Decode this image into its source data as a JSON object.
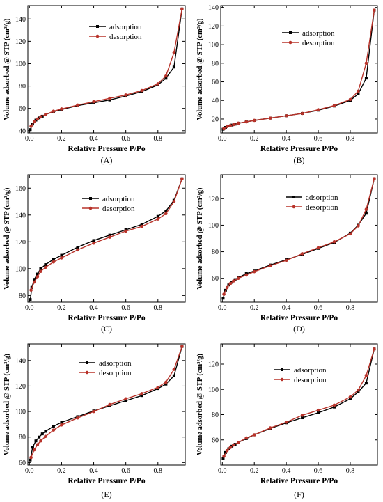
{
  "colors": {
    "adsorption": "#000000",
    "desorption": "#b8332a",
    "axis": "#000000"
  },
  "chart_data": [
    {
      "type": "line",
      "panel_label": "(A)",
      "xlabel": "Relative Pressure P/Po",
      "ylabel": "Volume adsorbed @ STP (cm³/g)",
      "xlim": [
        -0.01,
        0.97
      ],
      "ylim": [
        38,
        152
      ],
      "xticks": [
        0.0,
        0.2,
        0.4,
        0.6,
        0.8
      ],
      "xtick_labels": [
        "0.0",
        "0.2",
        "0.4",
        "0.6",
        "0.8"
      ],
      "yticks": [
        40,
        60,
        80,
        100,
        120,
        140
      ],
      "ytick_labels": [
        "40",
        "60",
        "80",
        "100",
        "120",
        "140"
      ],
      "legend": {
        "position": "top-left-center",
        "entries": [
          "adsorption",
          "desorption"
        ]
      },
      "series": [
        {
          "name": "adsorption",
          "x": [
            0.005,
            0.02,
            0.04,
            0.06,
            0.08,
            0.1,
            0.15,
            0.2,
            0.3,
            0.4,
            0.5,
            0.6,
            0.7,
            0.8,
            0.85,
            0.9,
            0.95
          ],
          "y": [
            41,
            46,
            49.5,
            51.5,
            53,
            54.5,
            57,
            59,
            62.5,
            65,
            67.5,
            71,
            75,
            81,
            87,
            97,
            149
          ]
        },
        {
          "name": "desorption",
          "x": [
            0.01,
            0.03,
            0.05,
            0.07,
            0.1,
            0.15,
            0.2,
            0.3,
            0.4,
            0.5,
            0.6,
            0.7,
            0.8,
            0.85,
            0.9,
            0.95
          ],
          "y": [
            44,
            48,
            50.5,
            52.5,
            54.5,
            57.5,
            59.5,
            63,
            66,
            69,
            72,
            76,
            82,
            89,
            110,
            149
          ]
        }
      ]
    },
    {
      "type": "line",
      "panel_label": "(B)",
      "xlabel": "Relative Pressure P/Po",
      "ylabel": "Volume adsorbed @ STP (cm³/g)",
      "xlim": [
        -0.01,
        0.97
      ],
      "ylim": [
        5,
        142
      ],
      "xticks": [
        0.0,
        0.2,
        0.4,
        0.6,
        0.8
      ],
      "xtick_labels": [
        "0.0",
        "0.2",
        "0.4",
        "0.6",
        "0.8"
      ],
      "yticks": [
        20,
        40,
        60,
        80,
        100,
        120,
        140
      ],
      "ytick_labels": [
        "20",
        "40",
        "60",
        "80",
        "100",
        "120",
        "140"
      ],
      "legend": {
        "position": "top-center",
        "entries": [
          "adsorption",
          "desorption"
        ]
      },
      "series": [
        {
          "name": "adsorption",
          "x": [
            0.005,
            0.02,
            0.04,
            0.06,
            0.08,
            0.1,
            0.15,
            0.2,
            0.3,
            0.4,
            0.5,
            0.6,
            0.7,
            0.8,
            0.85,
            0.9,
            0.95
          ],
          "y": [
            9,
            11,
            12.5,
            13.5,
            14.5,
            15.5,
            17,
            18.5,
            21,
            23.5,
            26,
            29.5,
            34,
            40,
            47,
            64,
            137
          ]
        },
        {
          "name": "desorption",
          "x": [
            0.01,
            0.03,
            0.05,
            0.07,
            0.1,
            0.15,
            0.2,
            0.3,
            0.4,
            0.5,
            0.6,
            0.7,
            0.8,
            0.85,
            0.9,
            0.95
          ],
          "y": [
            10,
            12,
            13,
            14,
            15.5,
            17,
            18.5,
            21,
            23.5,
            26,
            30,
            34.5,
            41,
            50,
            80,
            137
          ]
        }
      ]
    },
    {
      "type": "line",
      "panel_label": "(C)",
      "xlabel": "Relative Pressure P/Po",
      "ylabel": "Volume adsorbed @ STP (cm³/g)",
      "xlim": [
        -0.01,
        0.97
      ],
      "ylim": [
        75,
        170
      ],
      "xticks": [
        0.0,
        0.2,
        0.4,
        0.6,
        0.8
      ],
      "xtick_labels": [
        "0.0",
        "0.2",
        "0.4",
        "0.6",
        "0.8"
      ],
      "yticks": [
        80,
        100,
        120,
        140,
        160
      ],
      "ytick_labels": [
        "80",
        "100",
        "120",
        "140",
        "160"
      ],
      "legend": {
        "position": "top-left-center",
        "entries": [
          "adsorption",
          "desorption"
        ]
      },
      "series": [
        {
          "name": "adsorption",
          "x": [
            0.005,
            0.015,
            0.03,
            0.05,
            0.07,
            0.1,
            0.15,
            0.2,
            0.3,
            0.4,
            0.5,
            0.6,
            0.7,
            0.8,
            0.85,
            0.9,
            0.95
          ],
          "y": [
            77,
            86,
            92,
            96,
            100,
            103,
            107,
            110,
            116,
            121,
            125,
            129,
            133,
            139,
            143,
            151,
            167
          ]
        },
        {
          "name": "desorption",
          "x": [
            0.01,
            0.03,
            0.05,
            0.07,
            0.1,
            0.15,
            0.2,
            0.3,
            0.4,
            0.5,
            0.6,
            0.7,
            0.8,
            0.85,
            0.9,
            0.95
          ],
          "y": [
            84,
            90,
            94,
            98,
            101,
            105,
            108,
            114,
            119,
            123.5,
            128,
            131.5,
            137,
            141,
            150,
            167
          ]
        }
      ]
    },
    {
      "type": "line",
      "panel_label": "(D)",
      "xlabel": "Relative Pressure P/Po",
      "ylabel": "Volume adsorbed @ STP (cm³/g)",
      "xlim": [
        -0.01,
        0.97
      ],
      "ylim": [
        42,
        138
      ],
      "xticks": [
        0.0,
        0.2,
        0.4,
        0.6,
        0.8
      ],
      "xtick_labels": [
        "0.0",
        "0.2",
        "0.4",
        "0.6",
        "0.8"
      ],
      "yticks": [
        60,
        80,
        100,
        120
      ],
      "ytick_labels": [
        "60",
        "80",
        "100",
        "120"
      ],
      "legend": {
        "position": "top-center",
        "entries": [
          "adsorption",
          "desorption"
        ]
      },
      "series": [
        {
          "name": "adsorption",
          "x": [
            0.005,
            0.02,
            0.04,
            0.06,
            0.08,
            0.1,
            0.15,
            0.2,
            0.3,
            0.4,
            0.5,
            0.6,
            0.7,
            0.8,
            0.85,
            0.9,
            0.95
          ],
          "y": [
            45,
            51,
            55,
            57,
            59,
            60.5,
            63.5,
            65.5,
            70,
            74,
            78,
            82.5,
            87,
            94,
            100,
            109,
            135
          ]
        },
        {
          "name": "desorption",
          "x": [
            0.01,
            0.03,
            0.05,
            0.07,
            0.1,
            0.15,
            0.2,
            0.3,
            0.4,
            0.5,
            0.6,
            0.7,
            0.8,
            0.85,
            0.9,
            0.95
          ],
          "y": [
            48,
            53,
            56,
            58,
            60,
            62.5,
            65,
            69.5,
            73.5,
            78.5,
            83,
            87.5,
            93.5,
            99.5,
            112,
            135
          ]
        }
      ]
    },
    {
      "type": "line",
      "panel_label": "(E)",
      "xlabel": "Relative Pressure P/Po",
      "ylabel": "Volume adsorbed @ STP (cm³/g)",
      "xlim": [
        -0.01,
        0.97
      ],
      "ylim": [
        58,
        153
      ],
      "xticks": [
        0.0,
        0.2,
        0.4,
        0.6,
        0.8
      ],
      "xtick_labels": [
        "0.0",
        "0.2",
        "0.4",
        "0.6",
        "0.8"
      ],
      "yticks": [
        60,
        80,
        100,
        120,
        140
      ],
      "ytick_labels": [
        "60",
        "80",
        "100",
        "120",
        "140"
      ],
      "legend": {
        "position": "top-center",
        "entries": [
          "adsorption",
          "desorption"
        ]
      },
      "series": [
        {
          "name": "adsorption",
          "x": [
            0.005,
            0.02,
            0.04,
            0.06,
            0.08,
            0.1,
            0.15,
            0.2,
            0.3,
            0.4,
            0.5,
            0.6,
            0.7,
            0.8,
            0.85,
            0.9,
            0.95
          ],
          "y": [
            62,
            72,
            77,
            80,
            82.5,
            84.5,
            88.5,
            91.5,
            96,
            100.5,
            104.5,
            108.5,
            112.5,
            118,
            121.5,
            128,
            151
          ]
        },
        {
          "name": "desorption",
          "x": [
            0.01,
            0.03,
            0.05,
            0.07,
            0.1,
            0.15,
            0.2,
            0.3,
            0.4,
            0.5,
            0.6,
            0.7,
            0.8,
            0.85,
            0.9,
            0.95
          ],
          "y": [
            64,
            70,
            74,
            77,
            80.5,
            85.5,
            89.5,
            95,
            100,
            105.5,
            110,
            114,
            119,
            123,
            133,
            151
          ]
        }
      ]
    },
    {
      "type": "line",
      "panel_label": "(F)",
      "xlabel": "Relative Pressure P/Po",
      "ylabel": "Volume adsorbed @ STP (cm³/g)",
      "xlim": [
        -0.01,
        0.97
      ],
      "ylim": [
        40,
        136
      ],
      "xticks": [
        0.0,
        0.2,
        0.4,
        0.6,
        0.8
      ],
      "xtick_labels": [
        "0.0",
        "0.2",
        "0.4",
        "0.6",
        "0.8"
      ],
      "yticks": [
        60,
        80,
        100,
        120
      ],
      "ytick_labels": [
        "60",
        "80",
        "100",
        "120"
      ],
      "legend": {
        "position": "top-center",
        "entries": [
          "adsorption",
          "desorption"
        ]
      },
      "series": [
        {
          "name": "adsorption",
          "x": [
            0.005,
            0.02,
            0.04,
            0.06,
            0.08,
            0.1,
            0.15,
            0.2,
            0.3,
            0.4,
            0.5,
            0.6,
            0.7,
            0.8,
            0.85,
            0.9,
            0.95
          ],
          "y": [
            45,
            50,
            53,
            55,
            56.5,
            58,
            61,
            64,
            69,
            73.5,
            77.5,
            81.5,
            86,
            92.5,
            98,
            105,
            132
          ]
        },
        {
          "name": "desorption",
          "x": [
            0.01,
            0.03,
            0.05,
            0.07,
            0.1,
            0.15,
            0.2,
            0.3,
            0.4,
            0.5,
            0.6,
            0.7,
            0.8,
            0.85,
            0.9,
            0.95
          ],
          "y": [
            47,
            51.5,
            54,
            56,
            58,
            61.5,
            64,
            69.5,
            74,
            79.5,
            83.5,
            87.5,
            94,
            99.5,
            111,
            132
          ]
        }
      ]
    }
  ]
}
